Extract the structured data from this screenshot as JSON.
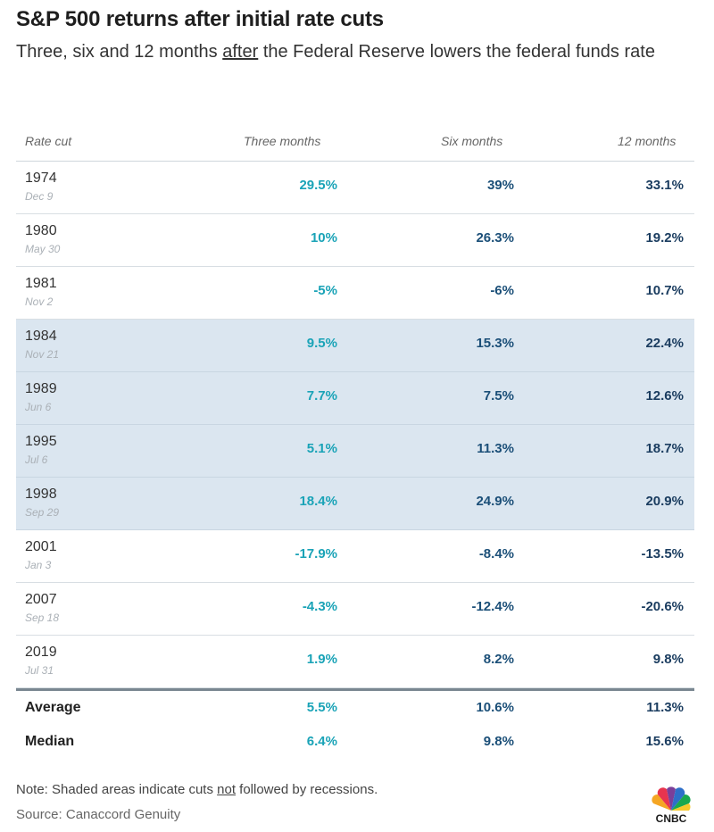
{
  "chart_data": {
    "type": "table",
    "title": "S&P 500 returns after initial rate cuts",
    "subtitle_before": "Three, six and 12 months ",
    "subtitle_emph": "after",
    "subtitle_after": " the Federal Reserve lowers the federal funds rate",
    "columns": [
      "Rate cut",
      "Three months",
      "Six months",
      "12 months"
    ],
    "rows": [
      {
        "year": "1974",
        "date": "Dec 9",
        "three": "29.5%",
        "six": "39%",
        "twelve": "33.1%",
        "shaded": false
      },
      {
        "year": "1980",
        "date": "May 30",
        "three": "10%",
        "six": "26.3%",
        "twelve": "19.2%",
        "shaded": false
      },
      {
        "year": "1981",
        "date": "Nov 2",
        "three": "-5%",
        "six": "-6%",
        "twelve": "10.7%",
        "shaded": false
      },
      {
        "year": "1984",
        "date": "Nov 21",
        "three": "9.5%",
        "six": "15.3%",
        "twelve": "22.4%",
        "shaded": true
      },
      {
        "year": "1989",
        "date": "Jun 6",
        "three": "7.7%",
        "six": "7.5%",
        "twelve": "12.6%",
        "shaded": true
      },
      {
        "year": "1995",
        "date": "Jul 6",
        "three": "5.1%",
        "six": "11.3%",
        "twelve": "18.7%",
        "shaded": true
      },
      {
        "year": "1998",
        "date": "Sep 29",
        "three": "18.4%",
        "six": "24.9%",
        "twelve": "20.9%",
        "shaded": true
      },
      {
        "year": "2001",
        "date": "Jan 3",
        "three": "-17.9%",
        "six": "-8.4%",
        "twelve": "-13.5%",
        "shaded": false
      },
      {
        "year": "2007",
        "date": "Sep 18",
        "three": "-4.3%",
        "six": "-12.4%",
        "twelve": "-20.6%",
        "shaded": false
      },
      {
        "year": "2019",
        "date": "Jul 31",
        "three": "1.9%",
        "six": "8.2%",
        "twelve": "9.8%",
        "shaded": false
      }
    ],
    "summary": [
      {
        "label": "Average",
        "three": "5.5%",
        "six": "10.6%",
        "twelve": "11.3%"
      },
      {
        "label": "Median",
        "three": "6.4%",
        "six": "9.8%",
        "twelve": "15.6%"
      }
    ],
    "shaded_color": "#dbe6f0",
    "column_colors": [
      "#1aa3b7",
      "#1b4f78",
      "#1b3d60"
    ]
  },
  "footer": {
    "note_before": "Note: Shaded areas indicate cuts ",
    "note_emph": "not",
    "note_after": " followed by recessions.",
    "source": "Source: Canaccord Genuity",
    "logo_text": "CNBC"
  }
}
